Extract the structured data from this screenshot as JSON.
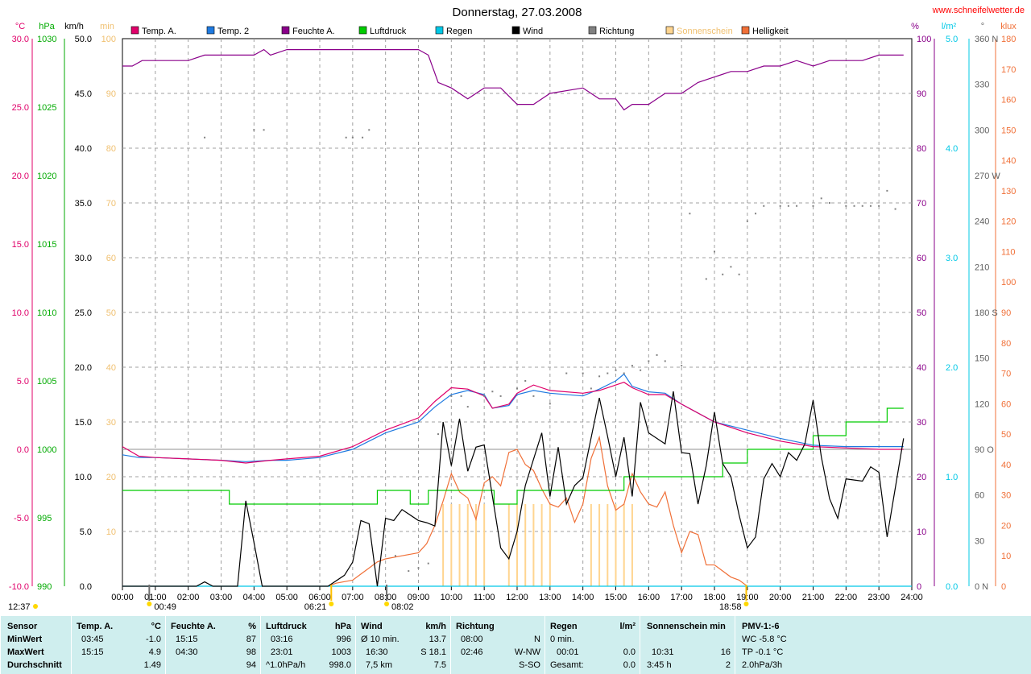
{
  "title": "Donnerstag, 27.03.2008",
  "website": "www.schneifelwetter.de",
  "legend": [
    {
      "label": "Temp. A.",
      "color": "#e0006a"
    },
    {
      "label": "Temp. 2",
      "color": "#1f7ae0"
    },
    {
      "label": "Feuchte A.",
      "color": "#8a008a"
    },
    {
      "label": "Luftdruck",
      "color": "#00cc00"
    },
    {
      "label": "Regen",
      "color": "#00c8e6"
    },
    {
      "label": "Wind",
      "color": "#000000"
    },
    {
      "label": "Richtung",
      "color": "#808080"
    },
    {
      "label": "Sonnenschein",
      "color": "#ffd590"
    },
    {
      "label": "Helligkeit",
      "color": "#f07038"
    }
  ],
  "axes": {
    "temp": {
      "unit": "°C",
      "ticks": [
        "30.0",
        "25.0",
        "20.0",
        "15.0",
        "10.0",
        "5.0",
        "0.0",
        "-5.0",
        "-10.0"
      ],
      "color": "#e0006a"
    },
    "pressure": {
      "unit": "hPa",
      "ticks": [
        "1030",
        "1025",
        "1020",
        "1015",
        "1010",
        "1005",
        "1000",
        "995",
        "990"
      ],
      "color": "#00aa00"
    },
    "wind": {
      "unit": "km/h",
      "ticks": [
        "50.0",
        "45.0",
        "40.0",
        "35.0",
        "30.0",
        "25.0",
        "20.0",
        "15.0",
        "10.0",
        "5.0",
        "0.0"
      ],
      "color": "#000000"
    },
    "sun": {
      "unit": "min",
      "ticks": [
        "100",
        "90",
        "80",
        "70",
        "60",
        "50",
        "40",
        "30",
        "20",
        "10"
      ],
      "color": "#ffd590"
    },
    "humidity": {
      "unit": "%",
      "ticks": [
        "100",
        "90",
        "80",
        "70",
        "60",
        "50",
        "40",
        "30",
        "20",
        "10",
        "0"
      ],
      "color": "#8a008a"
    },
    "rain": {
      "unit": "l/m²",
      "ticks": [
        "5.0",
        "4.0",
        "3.0",
        "2.0",
        "1.0",
        "0.0"
      ],
      "color": "#00c8e6"
    },
    "direction": {
      "unit": "°",
      "ticks": [
        "360 N",
        "330",
        "300",
        "270 W",
        "240",
        "210",
        "180 S",
        "150",
        "120",
        "90 O",
        "60",
        "30",
        "0 N"
      ],
      "color": "#606060"
    },
    "brightness": {
      "unit": "klux",
      "ticks": [
        "180",
        "170",
        "160",
        "150",
        "140",
        "130",
        "120",
        "110",
        "100",
        "90",
        "80",
        "70",
        "60",
        "50",
        "40",
        "30",
        "20",
        "10",
        "0"
      ],
      "color": "#f07038"
    },
    "time_ticks": [
      "00:00",
      "01:00",
      "02:00",
      "03:00",
      "04:00",
      "05:00",
      "06:00",
      "07:00",
      "08:00",
      "09:00",
      "10:00",
      "11:00",
      "12:00",
      "13:00",
      "14:00",
      "15:00",
      "16:00",
      "17:00",
      "18:00",
      "19:00",
      "20:00",
      "21:00",
      "22:00",
      "23:00",
      "24:00"
    ]
  },
  "time_markers": {
    "moonset": "00:49",
    "sunrise": "06:21",
    "moonrise": "08:02",
    "sunset": "18:58",
    "culmination": "12:37"
  },
  "chart_data": {
    "type": "line",
    "x_unit": "hours",
    "series": [
      {
        "name": "Temp. A.",
        "unit": "°C",
        "color": "#e0006a",
        "x": [
          0,
          0.5,
          1,
          2,
          3,
          3.75,
          4.5,
          5,
          6,
          7,
          8,
          9,
          9.5,
          10,
          10.5,
          11,
          11.25,
          11.75,
          12,
          12.5,
          13,
          14,
          14.5,
          15,
          15.25,
          15.5,
          16,
          16.5,
          17,
          18,
          19,
          20,
          21,
          22,
          23,
          23.75
        ],
        "y": [
          0.2,
          -0.5,
          -0.6,
          -0.7,
          -0.8,
          -1.0,
          -0.8,
          -0.7,
          -0.5,
          0.2,
          1.4,
          2.3,
          3.5,
          4.5,
          4.4,
          3.9,
          3.0,
          3.3,
          4.1,
          4.7,
          4.3,
          4.1,
          4.3,
          4.7,
          4.9,
          4.5,
          4.0,
          4.0,
          3.3,
          2.0,
          1.2,
          0.6,
          0.2,
          0.1,
          0.0,
          0.0
        ]
      },
      {
        "name": "Temp. 2",
        "unit": "°C",
        "color": "#1f7ae0",
        "x": [
          0,
          0.5,
          1,
          2,
          3,
          3.75,
          4.5,
          5,
          6,
          7,
          8,
          9,
          9.5,
          10,
          10.5,
          11,
          11.25,
          11.75,
          12,
          12.5,
          13,
          14,
          14.5,
          15,
          15.25,
          15.5,
          16,
          16.5,
          17,
          18,
          19,
          20,
          21,
          22,
          23,
          23.75
        ],
        "y": [
          -0.4,
          -0.6,
          -0.6,
          -0.7,
          -0.8,
          -0.9,
          -0.8,
          -0.8,
          -0.6,
          0.0,
          1.2,
          2.0,
          3.1,
          4.0,
          4.3,
          4.0,
          3.0,
          3.2,
          4.0,
          4.3,
          4.1,
          3.9,
          4.4,
          5.0,
          5.5,
          4.6,
          4.2,
          4.1,
          3.3,
          2.0,
          1.4,
          0.8,
          0.3,
          0.2,
          0.2,
          0.2
        ]
      },
      {
        "name": "Feuchte A.",
        "unit": "%",
        "color": "#8a008a",
        "x": [
          0,
          0.3,
          0.6,
          1,
          2,
          2.5,
          3,
          4,
          4.3,
          4.5,
          5,
          6,
          7,
          8,
          9,
          9.3,
          9.6,
          10,
          10.5,
          11,
          11.5,
          12,
          12.5,
          13,
          14,
          14.5,
          15,
          15.25,
          15.5,
          16,
          16.5,
          17,
          17.5,
          18,
          18.5,
          19,
          19.5,
          20,
          20.5,
          21,
          21.5,
          22,
          22.5,
          23,
          23.5,
          23.75
        ],
        "y": [
          95,
          95,
          96,
          96,
          96,
          97,
          97,
          97,
          98,
          97,
          98,
          98,
          98,
          98,
          98,
          97,
          92,
          91,
          89,
          91,
          91,
          88,
          88,
          90,
          91,
          89,
          89,
          87,
          88,
          88,
          90,
          90,
          92,
          93,
          94,
          94,
          95,
          95,
          96,
          95,
          96,
          96,
          96,
          97,
          97,
          97
        ]
      },
      {
        "name": "Luftdruck",
        "unit": "hPa",
        "color": "#00cc00",
        "x": [
          0,
          3,
          3.25,
          7,
          7.25,
          7.75,
          8.25,
          8.75,
          9,
          9.3,
          9.75,
          11,
          11.3,
          11.75,
          12,
          15,
          15.25,
          16,
          17.75,
          18.25,
          19,
          20,
          21,
          21.75,
          22,
          23,
          23.25,
          23.75
        ],
        "y": [
          997,
          997,
          996,
          996,
          996,
          997,
          997,
          996,
          996,
          997,
          997,
          997,
          996,
          996,
          997,
          997,
          998,
          998,
          998,
          999,
          1000,
          1000,
          1001,
          1001,
          1002,
          1002,
          1003,
          1003
        ]
      },
      {
        "name": "Regen",
        "unit": "l/m²",
        "color": "#00c8e6",
        "x": [
          0,
          24
        ],
        "y": [
          0,
          0
        ]
      },
      {
        "name": "Wind",
        "unit": "km/h",
        "color": "#000000",
        "x": [
          0,
          2.25,
          2.5,
          2.75,
          3.5,
          3.75,
          4,
          4.25,
          5.5,
          6.25,
          6.75,
          7,
          7.25,
          7.5,
          7.75,
          8,
          8.25,
          8.5,
          9,
          9.25,
          9.5,
          9.75,
          10,
          10.25,
          10.5,
          10.75,
          11,
          11.5,
          11.75,
          12,
          12.25,
          12.75,
          13,
          13.25,
          13.5,
          13.75,
          14,
          14.5,
          14.75,
          15,
          15.25,
          15.5,
          15.75,
          16,
          16.5,
          16.75,
          17,
          17.25,
          17.5,
          17.75,
          18,
          18.25,
          18.5,
          18.75,
          19,
          19.25,
          19.5,
          19.75,
          20,
          20.25,
          20.5,
          20.75,
          21,
          21.25,
          21.5,
          21.75,
          22,
          22.5,
          22.75,
          23,
          23.25,
          23.5,
          23.75
        ],
        "y": [
          0,
          0,
          0.4,
          0,
          0,
          7.8,
          4.0,
          0,
          0,
          0,
          1.0,
          2.2,
          6.0,
          5.7,
          0,
          6.2,
          6.0,
          7.0,
          6.0,
          5.8,
          5.5,
          15.0,
          11.0,
          15.3,
          10.5,
          12.7,
          12.9,
          3.5,
          2.5,
          5.0,
          9.2,
          14.0,
          8.2,
          12.7,
          7.5,
          9.2,
          9.9,
          17.2,
          13.7,
          10.0,
          13.6,
          8.2,
          16.8,
          14.0,
          13.0,
          17.8,
          12.2,
          12.1,
          7.5,
          11.0,
          15.9,
          11.2,
          10.0,
          6.5,
          3.5,
          4.5,
          9.8,
          11.2,
          10.0,
          12.2,
          11.5,
          13.0,
          17.0,
          11.8,
          8.0,
          6.2,
          9.8,
          9.6,
          10.9,
          10.4,
          4.5,
          9.0,
          13.5
        ]
      },
      {
        "name": "Richtung",
        "unit": "°",
        "color": "#808080",
        "x": [
          2.5,
          4,
          4.3,
          6.8,
          7,
          7.3,
          7.5,
          8.3,
          8.7,
          9,
          9.3,
          9.6,
          10,
          10.3,
          10.5,
          11,
          11.25,
          11.5,
          12,
          12.25,
          12.5,
          13,
          13.5,
          14,
          14.25,
          14.5,
          14.75,
          15,
          15.25,
          15.5,
          15.75,
          16,
          16.25,
          16.5,
          17,
          17.25,
          17.75,
          18,
          18.25,
          18.5,
          18.75,
          19,
          19.25,
          19.5,
          20,
          20.25,
          20.5,
          21,
          21.25,
          21.5,
          22,
          22.25,
          22.5,
          22.75,
          23,
          23.25,
          23.5
        ],
        "y": [
          295,
          300,
          300,
          295,
          295,
          295,
          300,
          20,
          10,
          12,
          15,
          100,
          125,
          125,
          118,
          125,
          128,
          125,
          130,
          135,
          125,
          120,
          140,
          140,
          130,
          138,
          140,
          142,
          140,
          145,
          142,
          148,
          152,
          148,
          145,
          245,
          202,
          220,
          205,
          210,
          205,
          240,
          245,
          250,
          250,
          250,
          250,
          250,
          255,
          252,
          250,
          250,
          250,
          250,
          250,
          260,
          248
        ]
      },
      {
        "name": "Sonnenschein",
        "unit": "min",
        "color": "#ffd590",
        "x": [
          9.75,
          10,
          10.25,
          10.5,
          10.75,
          11,
          11.75,
          12,
          12.25,
          12.5,
          12.75,
          13,
          14.25,
          14.5,
          14.75,
          15,
          15.25,
          15.5
        ],
        "y": [
          15,
          15,
          15,
          15,
          15,
          15,
          15,
          15,
          15,
          15,
          15,
          15,
          15,
          15,
          15,
          15,
          15,
          15
        ]
      },
      {
        "name": "Helligkeit",
        "unit": "klux",
        "color": "#f07038",
        "x": [
          6.25,
          6.5,
          7,
          7.25,
          7.5,
          7.75,
          8,
          8.5,
          9,
          9.25,
          9.5,
          9.75,
          10,
          10.25,
          10.5,
          10.75,
          11,
          11.25,
          11.5,
          11.75,
          12,
          12.25,
          12.5,
          12.75,
          13,
          13.25,
          13.5,
          13.75,
          14,
          14.25,
          14.5,
          14.75,
          15,
          15.25,
          15.5,
          15.75,
          16,
          16.25,
          16.5,
          16.75,
          17,
          17.25,
          17.5,
          17.75,
          18,
          18.5,
          18.75,
          19
        ],
        "y": [
          0,
          1,
          2,
          4,
          6,
          8,
          9,
          10,
          11,
          14,
          20,
          28,
          37,
          31,
          29,
          22,
          34,
          36,
          33,
          44,
          45,
          40,
          38,
          32,
          27,
          26,
          29,
          21,
          27,
          42,
          49,
          33,
          25,
          27,
          37,
          31,
          27,
          26,
          31,
          20,
          11,
          18,
          17,
          7,
          7,
          3,
          2,
          0
        ]
      }
    ],
    "xlim": [
      0,
      24
    ]
  },
  "stats": {
    "sensor": {
      "header": "Sensor",
      "rows": [
        "MinWert",
        "MaxWert",
        "Durchschnitt"
      ]
    },
    "temp": {
      "header": "Temp. A.",
      "unit": "°C",
      "min_time": "03:45",
      "min_val": "-1.0",
      "max_time": "15:15",
      "max_val": "4.9",
      "avg_val": "1.49"
    },
    "humidity": {
      "header": "Feuchte A.",
      "unit": "%",
      "min_time": "15:15",
      "min_val": "87",
      "max_time": "04:30",
      "max_val": "98",
      "avg_val": "94"
    },
    "pressure": {
      "header": "Luftdruck",
      "unit": "hPa",
      "min_time": "03:16",
      "min_val": "996",
      "max_time": "23:01",
      "max_val": "1003",
      "avg_label": "^1.0hPa/h",
      "avg_val": "998.0"
    },
    "wind": {
      "header": "Wind",
      "unit": "km/h",
      "min_label": "Ø 10 min.",
      "min_val": "13.7",
      "max_time": "16:30",
      "max_val": "S 18.1",
      "avg_label": "7,5 km",
      "avg_val": "7.5"
    },
    "direction": {
      "header": "Richtung",
      "min_time": "08:00",
      "min_val": "N",
      "max_time": "02:46",
      "max_val": "W-NW",
      "avg_val": "S-SO"
    },
    "rain": {
      "header": "Regen",
      "unit": "l/m²",
      "min_label": "0 min.",
      "max_time": "00:01",
      "max_val": "0.0",
      "avg_label": "Gesamt:",
      "avg_val": "0.0"
    },
    "sunshine": {
      "header": "Sonnenschein min",
      "max_time": "10:31",
      "max_val": "16",
      "avg_label": "3:45 h",
      "avg_val": "2"
    },
    "pmv": {
      "header": "PMV-1:-6",
      "line1": "WC -5.8 °C",
      "line2": "TP -0.1 °C",
      "line3": "2.0hPa/3h"
    }
  }
}
